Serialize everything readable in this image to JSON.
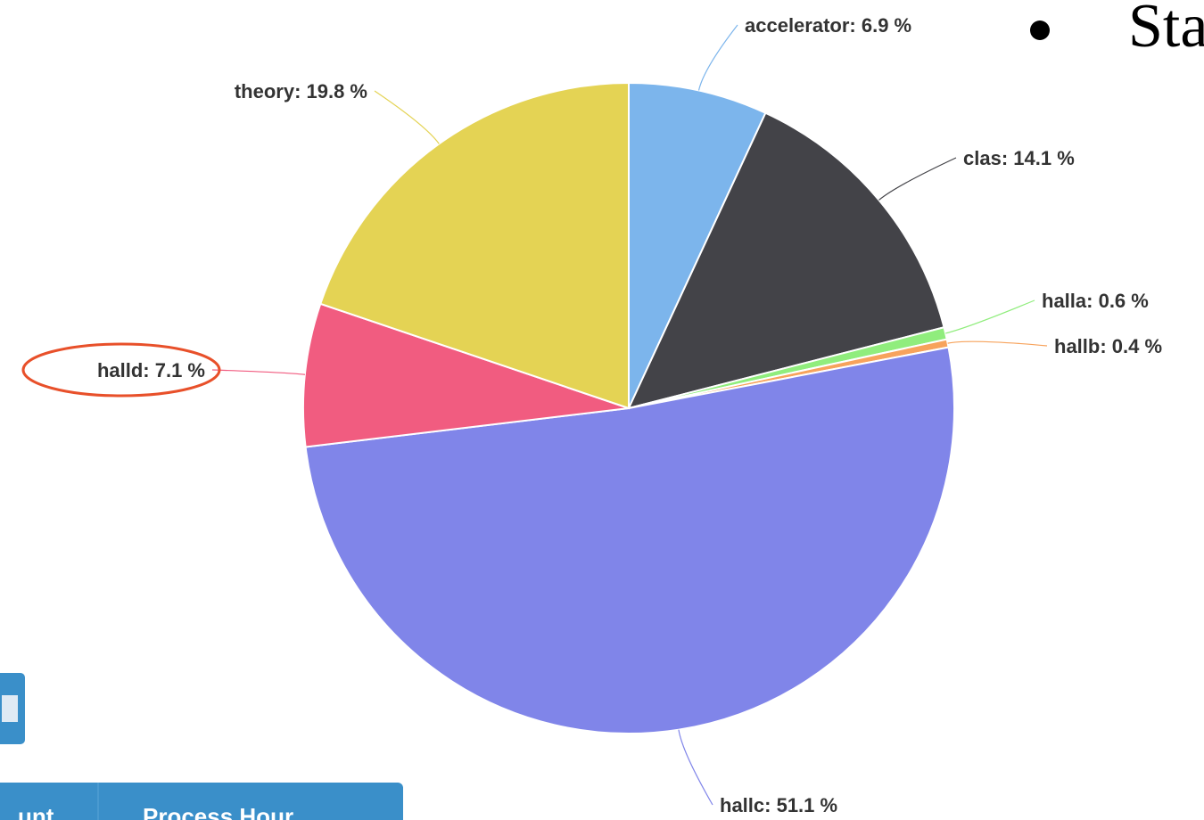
{
  "chart_data": {
    "type": "pie",
    "categories": [
      "accelerator",
      "clas",
      "halla",
      "hallb",
      "hallc",
      "halld",
      "theory"
    ],
    "values": [
      6.9,
      14.1,
      0.6,
      0.4,
      51.1,
      7.1,
      19.8
    ],
    "value_labels": [
      ": 6.9 %",
      ": 14.1 %",
      ": 0.6 %",
      ": 0.4 %",
      ": 51.1 %",
      ": 7.1 %",
      ": 19.8 %"
    ],
    "colors": [
      "#7cb5ec",
      "#434348",
      "#90ed7d",
      "#f7a35c",
      "#8085e9",
      "#f15c80",
      "#e4d354"
    ]
  },
  "slide_text": "Sta",
  "table_headers": [
    "unt",
    "Process Hour"
  ]
}
